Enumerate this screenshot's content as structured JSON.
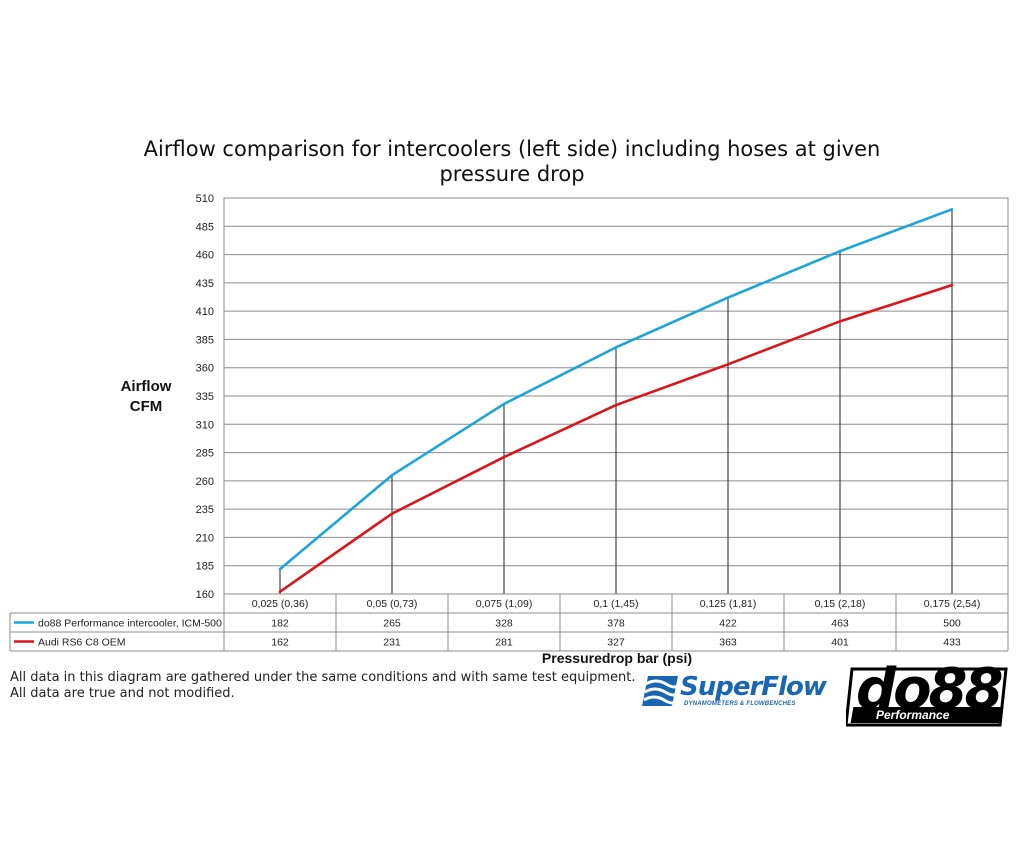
{
  "chart_data": {
    "type": "line",
    "title": "Airflow comparison for intercoolers (left side) including hoses at given pressure drop",
    "title_lines": [
      "Airflow comparison for intercoolers (left side) including hoses at given",
      "pressure drop"
    ],
    "ylabel_lines": [
      "Airflow",
      "CFM"
    ],
    "xlabel": "Pressuredrop bar (psi)",
    "categories": [
      "0,025 (0,36)",
      "0,05 (0,73)",
      "0,075 (1,09)",
      "0,1 (1,45)",
      "0,125 (1,81)",
      "0,15 (2,18)",
      "0,175 (2,54)"
    ],
    "ylim": [
      160,
      510
    ],
    "yticks": [
      "160",
      "185",
      "210",
      "235",
      "260",
      "285",
      "310",
      "335",
      "360",
      "385",
      "410",
      "435",
      "460",
      "485",
      "510"
    ],
    "grid": true,
    "legend": "data-table-below",
    "series": [
      {
        "name": "do88 Performance intercooler, ICM-500",
        "color": "#1aa6dc",
        "values": [
          182,
          265,
          328,
          378,
          422,
          463,
          500
        ],
        "labels": [
          "182",
          "265",
          "328",
          "378",
          "422",
          "463",
          "500"
        ]
      },
      {
        "name": "Audi RS6 C8 OEM",
        "color": "#d9161c",
        "values": [
          162,
          231,
          281,
          327,
          363,
          401,
          433
        ],
        "labels": [
          "162",
          "231",
          "281",
          "327",
          "363",
          "401",
          "433"
        ]
      }
    ]
  },
  "footnotes": [
    "All data in this diagram are gathered under the same conditions and with same test equipment.",
    "All data are true and not modified."
  ],
  "logos": {
    "superflow": {
      "name": "SuperFlow",
      "tagline": "DYNAMOMETERS & FLOWBENCHES",
      "icon": "superflow-wave-icon",
      "color": "#1b66b3"
    },
    "do88": {
      "name": "do88",
      "tagline": "Performance",
      "icon": "do88-logo-mark"
    }
  }
}
